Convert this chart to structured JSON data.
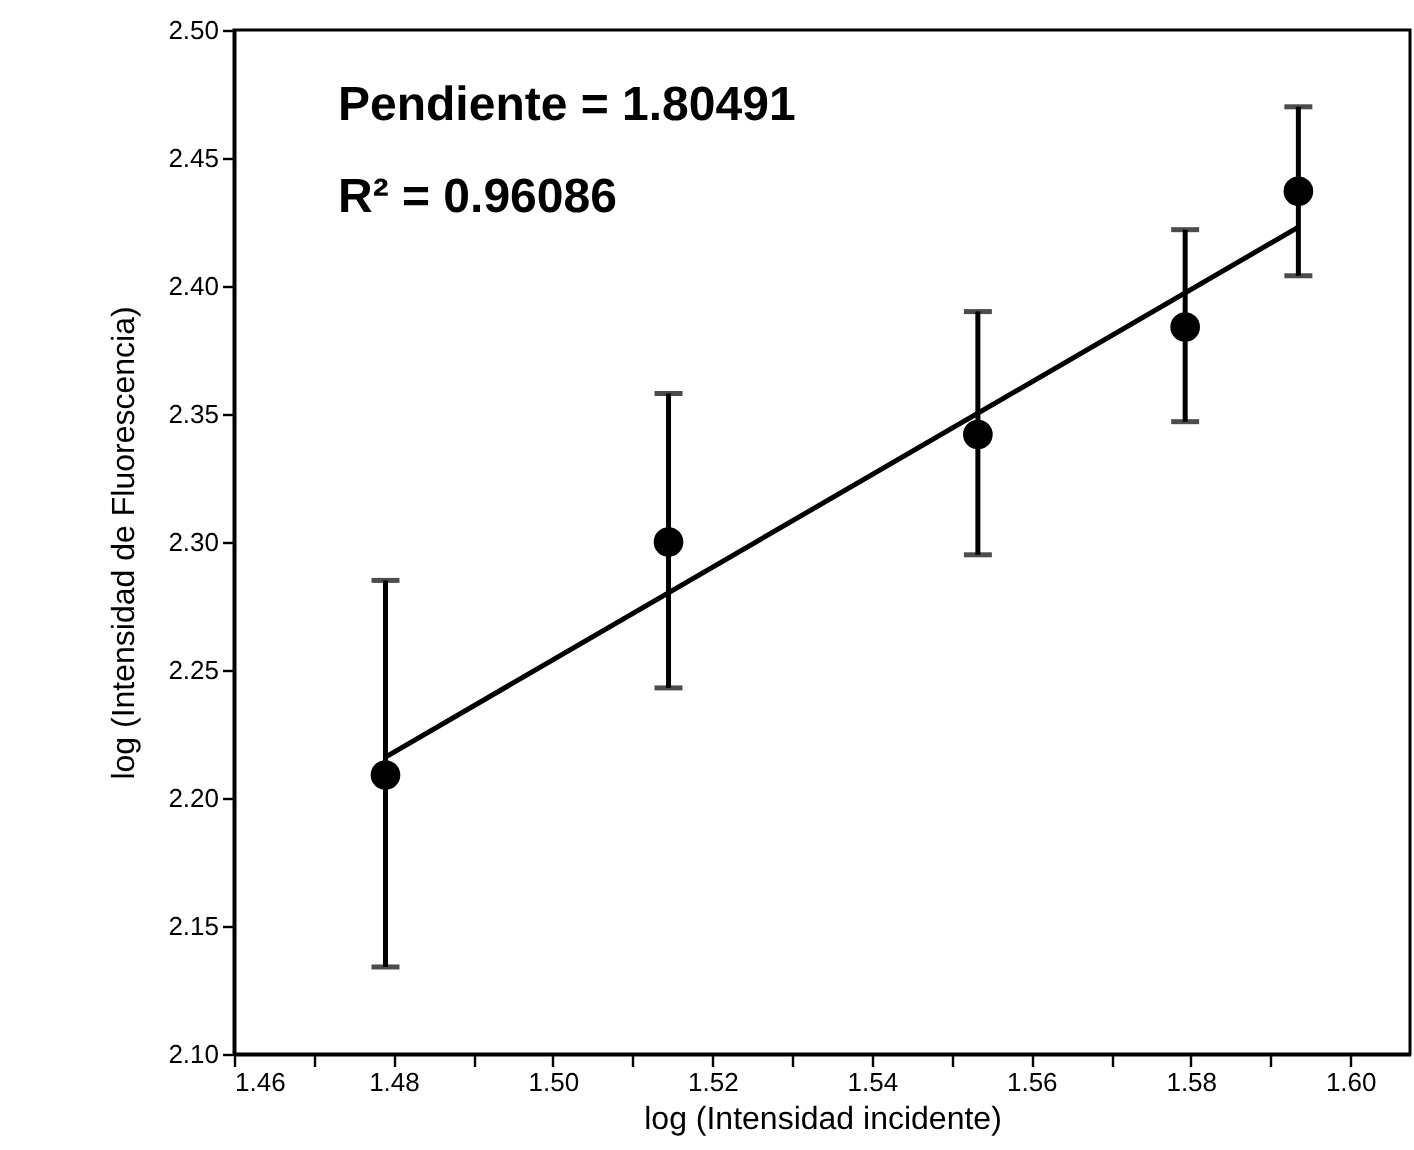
{
  "chart_data": {
    "type": "scatter",
    "xlabel": "log (Intensidad incidente)",
    "ylabel": "log (Intensidad de Fluorescencia)",
    "x": [
      1.479,
      1.5145,
      1.5533,
      1.5793,
      1.5935
    ],
    "series": [
      {
        "color": "#000000",
        "values": [
          2.209,
          2.3,
          2.342,
          2.384,
          2.437
        ],
        "errors": [
          [
            2.134,
            2.285
          ],
          [
            2.243,
            2.358
          ],
          [
            2.295,
            2.39
          ],
          [
            2.347,
            2.422
          ],
          [
            2.404,
            2.47
          ]
        ],
        "marker": "circle"
      },
      {
        "type": "line",
        "color": "#000000",
        "x": [
          1.479,
          1.5935
        ],
        "values": [
          2.216,
          2.423
        ],
        "line_style": "solid",
        "marker": "none"
      }
    ],
    "xlim": [
      1.46,
      1.6075
    ],
    "xticks": [
      1.46,
      {
        "value": 1.47,
        "label": null
      },
      1.48,
      {
        "value": 1.49,
        "label": null
      },
      {
        "value": 1.5,
        "label": "1.50"
      },
      {
        "value": 1.51,
        "label": null
      },
      1.52,
      {
        "value": 1.53,
        "label": null
      },
      1.54,
      {
        "value": 1.55,
        "label": null
      },
      1.56,
      {
        "value": 1.57,
        "label": null
      },
      1.58,
      {
        "value": 1.59,
        "label": null
      },
      {
        "value": 1.6,
        "label": "1.60"
      }
    ],
    "ylim": [
      2.1,
      2.5
    ],
    "yticks": [
      {
        "value": 2.1,
        "label": "2.10"
      },
      2.15,
      {
        "value": 2.2,
        "label": "2.20"
      },
      2.25,
      {
        "value": 2.3,
        "label": "2.30"
      },
      2.35,
      {
        "value": 2.4,
        "label": "2.40"
      },
      2.45,
      {
        "value": 2.5,
        "label": "2.50"
      }
    ],
    "annotations": [
      "Pendiente = 1.80491",
      "R² = 0.96086"
    ],
    "grid": false
  }
}
